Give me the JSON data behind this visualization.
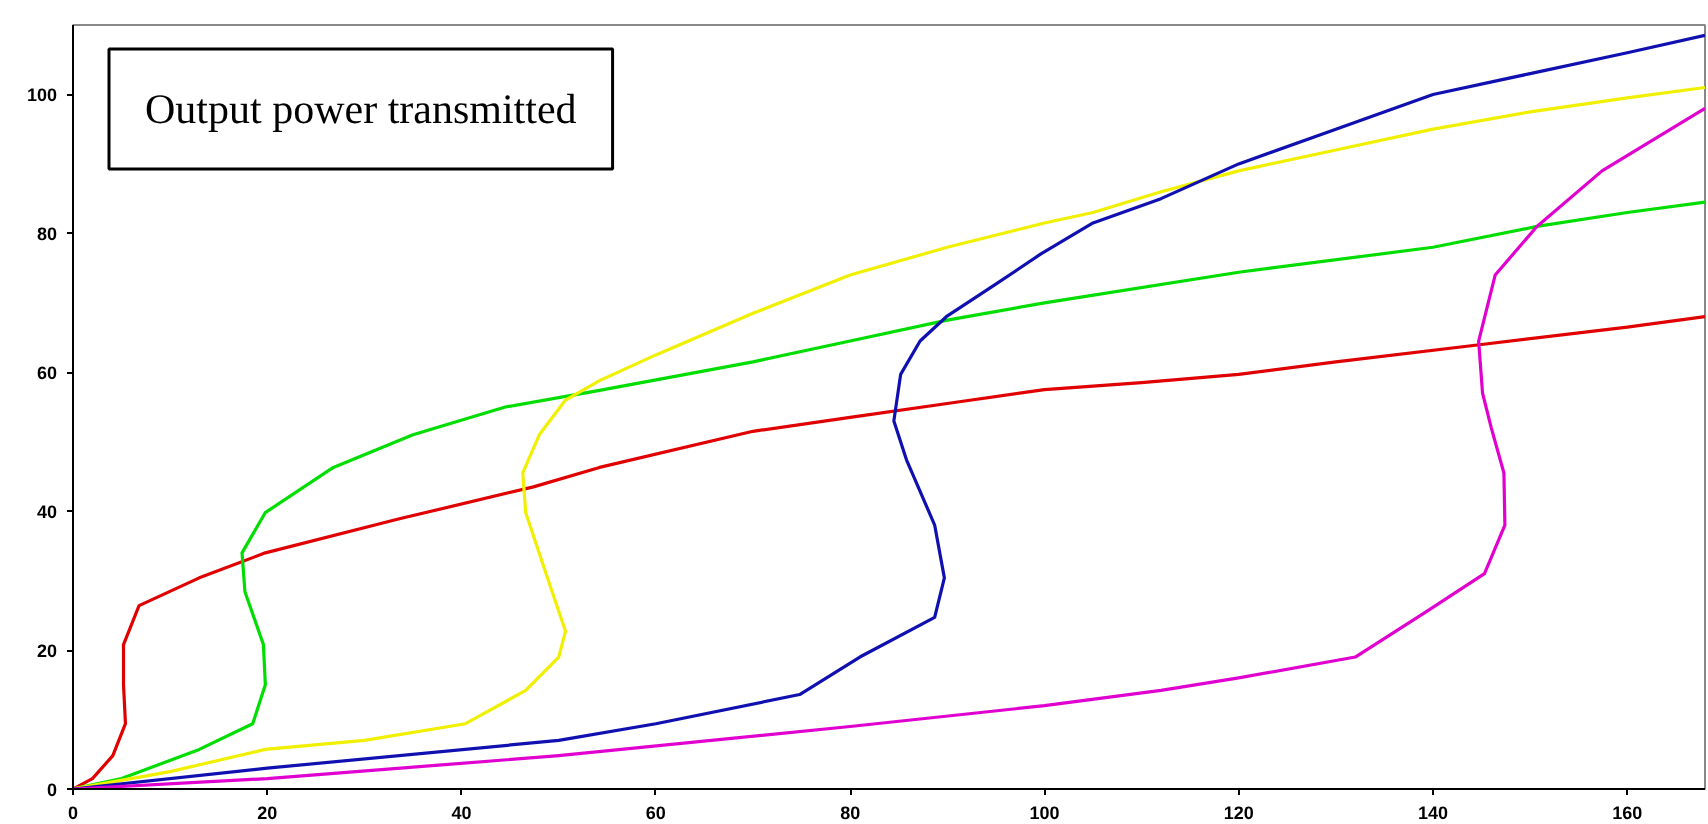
{
  "chart_data": {
    "type": "line",
    "xlim": [
      0,
      168
    ],
    "ylim": [
      0,
      110
    ],
    "xticks": [
      0,
      20,
      40,
      60,
      80,
      100,
      120,
      140,
      160
    ],
    "yticks": [
      0,
      20,
      40,
      60,
      80,
      100
    ],
    "grid": false,
    "marker": "none",
    "line_style": "solid",
    "annotations": [
      "Output power transmitted"
    ],
    "series": [
      {
        "color": "#e00000",
        "x": [
          0,
          2,
          4.1,
          5.4,
          5.2,
          5.2,
          6.8,
          13,
          19.8,
          33.6,
          47.4,
          54.2,
          70,
          80,
          90,
          100,
          110,
          120,
          130,
          145,
          160,
          168
        ],
        "values": [
          0,
          1.5,
          4.8,
          9.4,
          15,
          20.8,
          26.4,
          30.4,
          34,
          38.9,
          43.5,
          46.3,
          51.5,
          53.5,
          55.5,
          57.5,
          58.5,
          59.7,
          61.5,
          64,
          66.5,
          68
        ]
      },
      {
        "color": "#00dd00",
        "x": [
          0,
          5,
          13,
          18.5,
          19.8,
          19.6,
          17.7,
          17.4,
          19.8,
          26.8,
          35,
          44.5,
          54.2,
          70,
          80,
          90,
          100,
          120,
          140,
          150.7,
          160,
          168
        ],
        "values": [
          0,
          1.5,
          5.7,
          9.4,
          15,
          20.8,
          28.4,
          34,
          39.8,
          46.3,
          51,
          55,
          57.4,
          61.5,
          64.5,
          67.5,
          70,
          74.4,
          78,
          81,
          83,
          84.5
        ]
      },
      {
        "color": "#f0f000",
        "x": [
          0,
          10,
          19.8,
          30,
          40.4,
          46.6,
          50,
          50.7,
          48.7,
          46.6,
          46.3,
          48,
          50.7,
          54.2,
          60,
          70,
          80,
          90,
          100,
          105,
          112,
          120,
          130,
          140,
          150,
          160,
          168
        ],
        "values": [
          0,
          2.5,
          5.7,
          7,
          9.4,
          14.2,
          19,
          22.7,
          31,
          39.8,
          45.5,
          51,
          56,
          58.8,
          62.5,
          68.5,
          74,
          78,
          81.5,
          83,
          86,
          89,
          92,
          95,
          97.5,
          99.5,
          101
        ]
      },
      {
        "color": "#1010b0",
        "x": [
          0,
          20,
          50,
          60,
          74.8,
          81,
          88.7,
          89.7,
          88.7,
          85.8,
          84.5,
          85.2,
          87.2,
          89.9,
          94.8,
          99.6,
          105,
          112,
          120,
          130,
          140,
          150,
          160,
          168
        ],
        "values": [
          0,
          3,
          7,
          9.4,
          13.6,
          19,
          24.7,
          30.4,
          38,
          47.4,
          53,
          59.7,
          64.5,
          68,
          72.5,
          77,
          81.5,
          85,
          90,
          95,
          100,
          103,
          106,
          108.5
        ]
      },
      {
        "color": "#e000d0",
        "x": [
          0,
          20,
          50,
          80,
          100,
          112,
          120,
          132,
          139.4,
          145.3,
          147.4,
          147.3,
          146,
          145.1,
          144.7,
          146.4,
          150.7,
          157.4,
          168
        ],
        "values": [
          0,
          1.5,
          4.8,
          9,
          12,
          14.2,
          16,
          19,
          25.6,
          31,
          38,
          45.5,
          52,
          57,
          64.5,
          74,
          81,
          89,
          98
        ]
      }
    ]
  }
}
